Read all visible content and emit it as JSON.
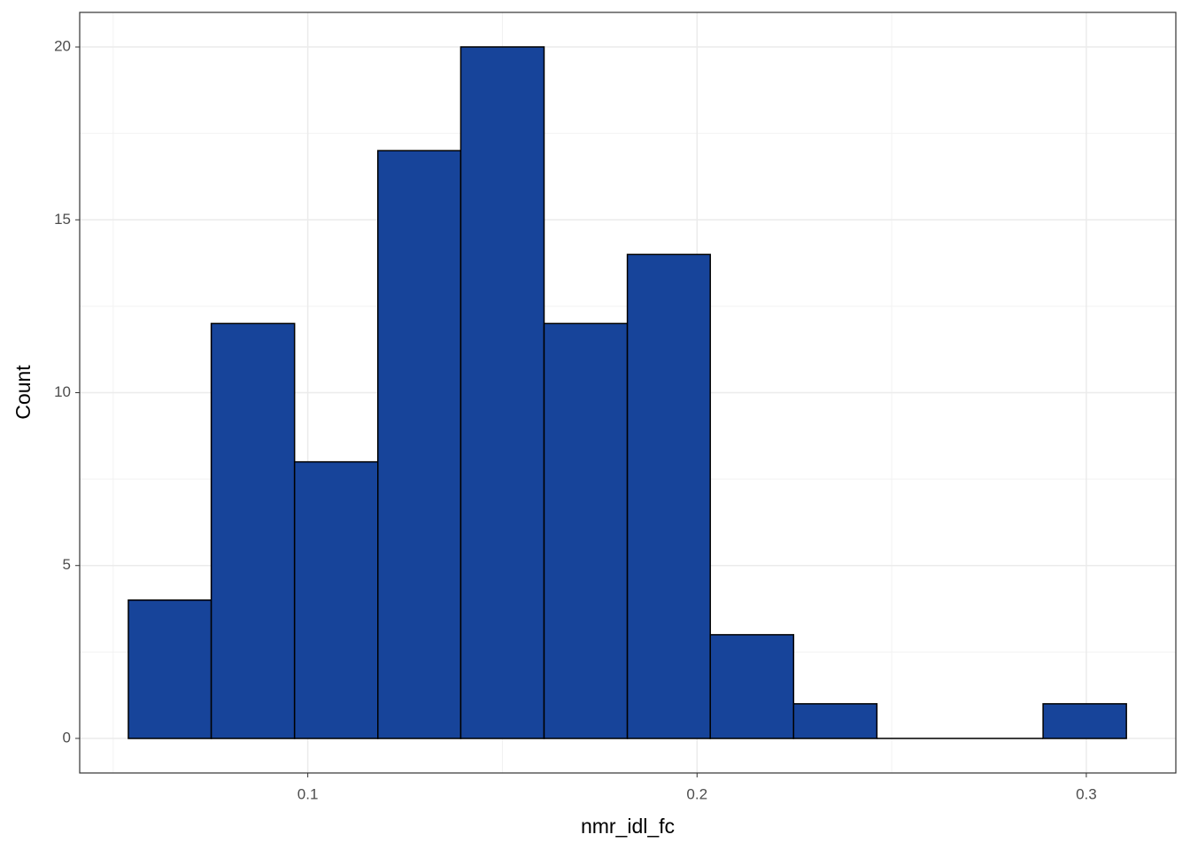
{
  "chart_data": {
    "type": "histogram",
    "x_label": "nmr_idl_fc",
    "y_label": "Count",
    "bins": [
      0.0539,
      0.0752,
      0.0966,
      0.118,
      0.1393,
      0.1607,
      0.1821,
      0.2034,
      0.2248,
      0.2462,
      0.2675,
      0.2889,
      0.3103
    ],
    "values": [
      4,
      12,
      8,
      17,
      20,
      12,
      14,
      3,
      1,
      0,
      0,
      1
    ],
    "color": "#17449a",
    "edgecolor": "#000000",
    "xlim": [
      0.0414,
      0.323
    ],
    "xticks": [
      0.1,
      0.2,
      0.3
    ],
    "ylim": [
      -1,
      21
    ],
    "yticks": [
      0,
      5,
      10,
      15,
      20
    ],
    "grid": true
  }
}
